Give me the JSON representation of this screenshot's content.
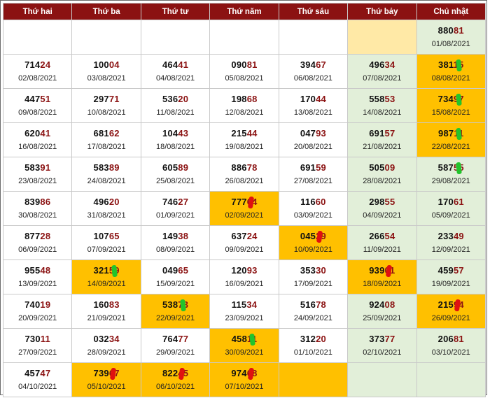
{
  "headers": [
    "Thứ hai",
    "Thứ ba",
    "Thứ tư",
    "Thứ năm",
    "Thứ sáu",
    "Thứ bảy",
    "Chủ nhật"
  ],
  "colors": {
    "header_bg": "#8b1212",
    "highlight": "#ffc000",
    "weekend": "#e2efd9",
    "pale_yellow": "#ffe9a6",
    "tail_red": "#8b1212"
  },
  "rows": [
    [
      {
        "empty": true
      },
      {
        "empty": true
      },
      {
        "empty": true
      },
      {
        "empty": true
      },
      {
        "empty": true
      },
      {
        "empty": true,
        "style": "yel"
      },
      {
        "head": "880",
        "tail": "81",
        "date": "01/08/2021",
        "style": "we"
      }
    ],
    [
      {
        "head": "714",
        "tail": "24",
        "date": "02/08/2021"
      },
      {
        "head": "100",
        "tail": "04",
        "date": "03/08/2021"
      },
      {
        "head": "464",
        "tail": "41",
        "date": "04/08/2021"
      },
      {
        "head": "090",
        "tail": "81",
        "date": "05/08/2021"
      },
      {
        "head": "394",
        "tail": "67",
        "date": "06/08/2021"
      },
      {
        "head": "496",
        "tail": "34",
        "date": "07/08/2021",
        "style": "we"
      },
      {
        "head": "381",
        "tail": "15",
        "date": "08/08/2021",
        "style": "hl",
        "mark": "green"
      }
    ],
    [
      {
        "head": "447",
        "tail": "51",
        "date": "09/08/2021"
      },
      {
        "head": "297",
        "tail": "71",
        "date": "10/08/2021"
      },
      {
        "head": "536",
        "tail": "20",
        "date": "11/08/2021"
      },
      {
        "head": "198",
        "tail": "68",
        "date": "12/08/2021"
      },
      {
        "head": "170",
        "tail": "44",
        "date": "13/08/2021"
      },
      {
        "head": "558",
        "tail": "53",
        "date": "14/08/2021",
        "style": "we"
      },
      {
        "head": "734",
        "tail": "97",
        "date": "15/08/2021",
        "style": "hl",
        "mark": "green"
      }
    ],
    [
      {
        "head": "620",
        "tail": "41",
        "date": "16/08/2021"
      },
      {
        "head": "681",
        "tail": "62",
        "date": "17/08/2021"
      },
      {
        "head": "104",
        "tail": "43",
        "date": "18/08/2021"
      },
      {
        "head": "215",
        "tail": "44",
        "date": "19/08/2021"
      },
      {
        "head": "047",
        "tail": "93",
        "date": "20/08/2021"
      },
      {
        "head": "691",
        "tail": "57",
        "date": "21/08/2021",
        "style": "we"
      },
      {
        "head": "987",
        "tail": "11",
        "date": "22/08/2021",
        "style": "hl",
        "mark": "green"
      }
    ],
    [
      {
        "head": "583",
        "tail": "91",
        "date": "23/08/2021"
      },
      {
        "head": "583",
        "tail": "89",
        "date": "24/08/2021"
      },
      {
        "head": "605",
        "tail": "89",
        "date": "25/08/2021"
      },
      {
        "head": "886",
        "tail": "78",
        "date": "26/08/2021"
      },
      {
        "head": "691",
        "tail": "59",
        "date": "27/08/2021"
      },
      {
        "head": "505",
        "tail": "09",
        "date": "28/08/2021",
        "style": "we"
      },
      {
        "head": "587",
        "tail": "55",
        "date": "29/08/2021",
        "style": "we",
        "mark": "green"
      }
    ],
    [
      {
        "head": "839",
        "tail": "86",
        "date": "30/08/2021"
      },
      {
        "head": "496",
        "tail": "20",
        "date": "31/08/2021"
      },
      {
        "head": "746",
        "tail": "27",
        "date": "01/09/2021"
      },
      {
        "head": "777",
        "tail": "64",
        "date": "02/09/2021",
        "style": "hl",
        "mark": "red"
      },
      {
        "head": "116",
        "tail": "60",
        "date": "03/09/2021"
      },
      {
        "head": "298",
        "tail": "55",
        "date": "04/09/2021",
        "style": "we"
      },
      {
        "head": "170",
        "tail": "61",
        "date": "05/09/2021",
        "style": "we"
      }
    ],
    [
      {
        "head": "877",
        "tail": "28",
        "date": "06/09/2021"
      },
      {
        "head": "107",
        "tail": "65",
        "date": "07/09/2021"
      },
      {
        "head": "149",
        "tail": "38",
        "date": "08/09/2021"
      },
      {
        "head": "637",
        "tail": "24",
        "date": "09/09/2021"
      },
      {
        "head": "045",
        "tail": "29",
        "date": "10/09/2021",
        "style": "hl",
        "mark": "red"
      },
      {
        "head": "266",
        "tail": "54",
        "date": "11/09/2021",
        "style": "we"
      },
      {
        "head": "233",
        "tail": "49",
        "date": "12/09/2021",
        "style": "we"
      }
    ],
    [
      {
        "head": "955",
        "tail": "48",
        "date": "13/09/2021"
      },
      {
        "head": "321",
        "tail": "59",
        "date": "14/09/2021",
        "style": "hl",
        "mark": "green"
      },
      {
        "head": "049",
        "tail": "65",
        "date": "15/09/2021"
      },
      {
        "head": "120",
        "tail": "93",
        "date": "16/09/2021"
      },
      {
        "head": "353",
        "tail": "30",
        "date": "17/09/2021"
      },
      {
        "head": "939",
        "tail": "01",
        "date": "18/09/2021",
        "style": "hl",
        "mark": "red"
      },
      {
        "head": "459",
        "tail": "57",
        "date": "19/09/2021",
        "style": "we"
      }
    ],
    [
      {
        "head": "740",
        "tail": "19",
        "date": "20/09/2021"
      },
      {
        "head": "160",
        "tail": "83",
        "date": "21/09/2021"
      },
      {
        "head": "538",
        "tail": "73",
        "date": "22/09/2021",
        "style": "hl",
        "mark": "green"
      },
      {
        "head": "115",
        "tail": "34",
        "date": "23/09/2021"
      },
      {
        "head": "516",
        "tail": "78",
        "date": "24/09/2021"
      },
      {
        "head": "924",
        "tail": "08",
        "date": "25/09/2021",
        "style": "we"
      },
      {
        "head": "215",
        "tail": "94",
        "date": "26/09/2021",
        "style": "hl",
        "mark": "red"
      }
    ],
    [
      {
        "head": "730",
        "tail": "11",
        "date": "27/09/2021"
      },
      {
        "head": "032",
        "tail": "34",
        "date": "28/09/2021"
      },
      {
        "head": "764",
        "tail": "77",
        "date": "29/09/2021"
      },
      {
        "head": "458",
        "tail": "11",
        "date": "30/09/2021",
        "style": "hl",
        "mark": "green"
      },
      {
        "head": "312",
        "tail": "20",
        "date": "01/10/2021"
      },
      {
        "head": "373",
        "tail": "77",
        "date": "02/10/2021",
        "style": "we"
      },
      {
        "head": "206",
        "tail": "81",
        "date": "03/10/2021",
        "style": "we"
      }
    ],
    [
      {
        "head": "457",
        "tail": "47",
        "date": "04/10/2021"
      },
      {
        "head": "739",
        "tail": "67",
        "date": "05/10/2021",
        "style": "hl",
        "mark": "red"
      },
      {
        "head": "822",
        "tail": "45",
        "date": "06/10/2021",
        "style": "hl",
        "mark": "red"
      },
      {
        "head": "974",
        "tail": "68",
        "date": "07/10/2021",
        "style": "hl",
        "mark": "red"
      },
      {
        "empty": true,
        "style": "hl"
      },
      {
        "empty": true,
        "style": "we"
      },
      {
        "empty": true,
        "style": "we"
      }
    ]
  ]
}
